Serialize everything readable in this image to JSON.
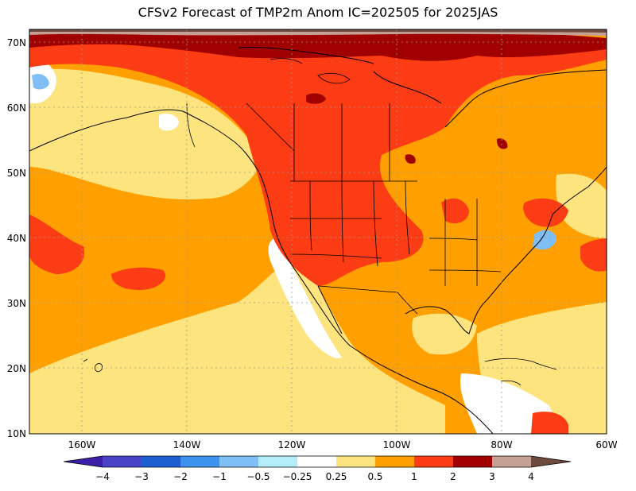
{
  "title": "CFSv2 Forecast of TMP2m Anom IC=202505 for 2025JAS",
  "axes": {
    "lat_labels": [
      "70N",
      "60N",
      "50N",
      "40N",
      "30N",
      "20N",
      "10N"
    ],
    "lon_labels": [
      "160W",
      "140W",
      "120W",
      "100W",
      "80W",
      "60W"
    ]
  },
  "colorbar": {
    "labels": [
      "-4",
      "-3",
      "-2",
      "-1",
      "-0.5",
      "-0.25",
      "0.25",
      "0.5",
      "1",
      "2",
      "3",
      "4"
    ],
    "colors": [
      "#3b1fa6",
      "#4a43c8",
      "#1d5fd0",
      "#3d93ee",
      "#7fbff5",
      "#b4eefa",
      "#ffffff",
      "#fde47f",
      "#ffa000",
      "#fb3c14",
      "#a00000",
      "#c4a194",
      "#6e4a3e"
    ]
  },
  "palette": {
    "pale_yellow": "#fde47f",
    "orange": "#ffa000",
    "red_orange": "#fb3c14",
    "dark_red": "#a00000",
    "light_blue": "#7fbff5",
    "white": "#ffffff",
    "brown": "#c4a194"
  }
}
